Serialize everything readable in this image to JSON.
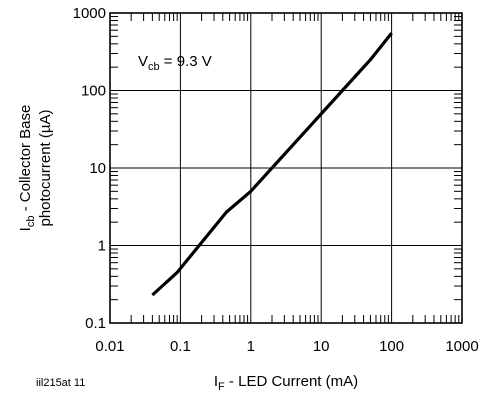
{
  "chart_data": {
    "type": "line",
    "x_scale": "log",
    "y_scale": "log",
    "xlim": [
      0.01,
      1000
    ],
    "ylim": [
      0.1,
      1000
    ],
    "grid": true,
    "x_tick_labels": [
      "0.01",
      "0.1",
      "1",
      "10",
      "100",
      "1000"
    ],
    "y_tick_labels": [
      "0.1",
      "1",
      "10",
      "100",
      "1000"
    ],
    "ylabel_line1": "I",
    "ylabel_line1_sub": "cb",
    "ylabel_line1_rest": " - Collector Base",
    "ylabel_line2": "photocurrent (µA)",
    "xlabel_main": "I",
    "xlabel_sub": "F",
    "xlabel_rest": " - LED Current (mA)",
    "annotation": {
      "main": "V",
      "sub": "cb",
      "rest": " = 9.3 V"
    },
    "figure_id": "iil215at 11",
    "series": [
      {
        "x": [
          0.04,
          0.09,
          0.45,
          1.0,
          5.0,
          20,
          50,
          100
        ],
        "y": [
          0.23,
          0.45,
          2.7,
          5.0,
          25,
          100,
          250,
          550
        ]
      }
    ]
  }
}
